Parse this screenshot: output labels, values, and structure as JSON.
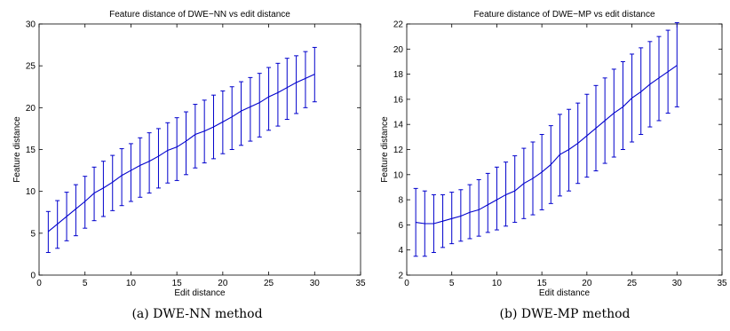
{
  "chart_data": [
    {
      "type": "line",
      "title": "Feature distance of DWE−NN vs edit distance",
      "xlabel": "Edit distance",
      "ylabel": "Feature distance",
      "xlim": [
        0,
        35
      ],
      "ylim": [
        0,
        30
      ],
      "xticks": [
        0,
        5,
        10,
        15,
        20,
        25,
        30,
        35
      ],
      "yticks": [
        0,
        5,
        10,
        15,
        20,
        25,
        30
      ],
      "grid": false,
      "color": "#0000cc",
      "caption": "(a) DWE-NN method",
      "series": [
        {
          "x": [
            1,
            2,
            3,
            4,
            5,
            6,
            7,
            8,
            9,
            10,
            11,
            12,
            13,
            14,
            15,
            16,
            17,
            18,
            19,
            20,
            21,
            22,
            23,
            24,
            25,
            26,
            27,
            28,
            29,
            30
          ],
          "y": [
            5.2,
            6.1,
            7.0,
            7.9,
            8.8,
            9.8,
            10.4,
            11.1,
            11.9,
            12.5,
            13.1,
            13.6,
            14.2,
            14.9,
            15.3,
            16.0,
            16.8,
            17.2,
            17.7,
            18.3,
            18.9,
            19.6,
            20.1,
            20.6,
            21.3,
            21.8,
            22.4,
            23.0,
            23.5,
            24.0
          ],
          "err_low": [
            2.7,
            3.2,
            4.1,
            4.7,
            5.6,
            6.5,
            7.0,
            7.7,
            8.3,
            8.8,
            9.3,
            9.8,
            10.4,
            11.0,
            11.3,
            12.0,
            12.8,
            13.4,
            13.9,
            14.5,
            15.0,
            15.5,
            16.0,
            16.5,
            17.3,
            17.8,
            18.6,
            19.3,
            20.0,
            20.7
          ],
          "err_high": [
            7.6,
            8.9,
            9.9,
            10.8,
            11.8,
            12.9,
            13.6,
            14.3,
            15.1,
            15.7,
            16.4,
            17.0,
            17.5,
            18.2,
            18.8,
            19.5,
            20.4,
            20.9,
            21.5,
            22.0,
            22.5,
            23.1,
            23.6,
            24.1,
            24.8,
            25.3,
            25.9,
            26.2,
            26.7,
            27.2
          ]
        }
      ]
    },
    {
      "type": "line",
      "title": "Feature distance of DWE−MP vs edit distance",
      "xlabel": "Edit distance",
      "ylabel": "Feature distance",
      "xlim": [
        0,
        35
      ],
      "ylim": [
        2,
        22
      ],
      "xticks": [
        0,
        5,
        10,
        15,
        20,
        25,
        30,
        35
      ],
      "yticks": [
        2,
        4,
        6,
        8,
        10,
        12,
        14,
        16,
        18,
        20,
        22
      ],
      "grid": false,
      "color": "#0000cc",
      "caption": "(b) DWE-MP method",
      "series": [
        {
          "x": [
            1,
            2,
            3,
            4,
            5,
            6,
            7,
            8,
            9,
            10,
            11,
            12,
            13,
            14,
            15,
            16,
            17,
            18,
            19,
            20,
            21,
            22,
            23,
            24,
            25,
            26,
            27,
            28,
            29,
            30
          ],
          "y": [
            6.2,
            6.1,
            6.1,
            6.3,
            6.5,
            6.7,
            7.0,
            7.2,
            7.6,
            8.0,
            8.4,
            8.7,
            9.3,
            9.7,
            10.2,
            10.8,
            11.6,
            12.0,
            12.5,
            13.1,
            13.7,
            14.3,
            14.9,
            15.4,
            16.1,
            16.6,
            17.2,
            17.7,
            18.2,
            18.7
          ],
          "err_low": [
            3.5,
            3.5,
            3.8,
            4.2,
            4.5,
            4.7,
            4.9,
            5.1,
            5.4,
            5.6,
            5.9,
            6.2,
            6.5,
            6.8,
            7.2,
            7.7,
            8.3,
            8.7,
            9.3,
            9.8,
            10.3,
            10.9,
            11.4,
            12.0,
            12.6,
            13.2,
            13.8,
            14.3,
            14.9,
            15.4
          ],
          "err_high": [
            8.9,
            8.7,
            8.4,
            8.4,
            8.6,
            8.8,
            9.2,
            9.6,
            10.1,
            10.6,
            11.0,
            11.5,
            12.1,
            12.6,
            13.2,
            13.9,
            14.8,
            15.2,
            15.7,
            16.4,
            17.1,
            17.7,
            18.4,
            19.0,
            19.6,
            20.1,
            20.6,
            21.0,
            21.5,
            22.1
          ]
        }
      ]
    }
  ]
}
